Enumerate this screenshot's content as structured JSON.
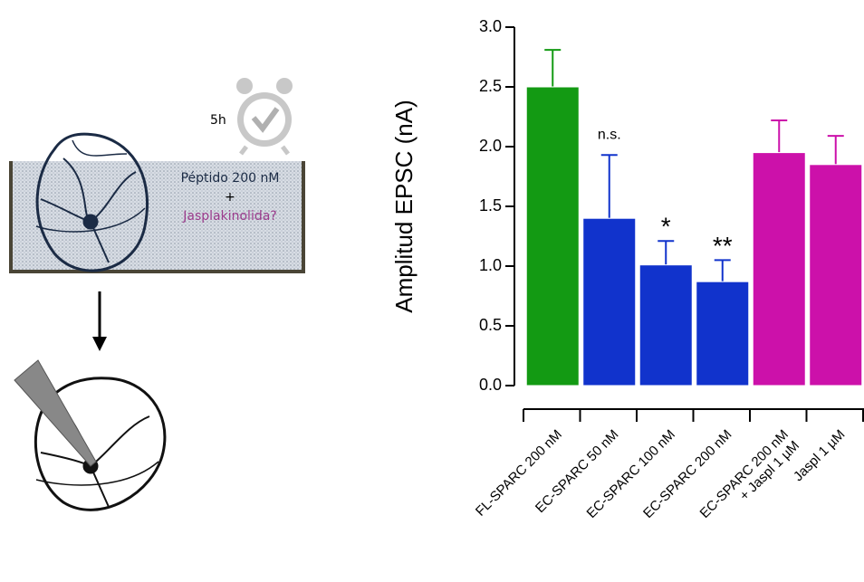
{
  "illustration": {
    "duration": "5h",
    "treatment": "Péptido 200 nM",
    "plus": "+",
    "question": "Jasplakinolida?"
  },
  "chart_data": {
    "type": "bar",
    "y_label": "Amplitud EPSC (nA)",
    "categories": [
      "FL-SPARC 200 nM",
      "EC-SPARC 50 nM",
      "EC-SPARC 100 nM",
      "EC-SPARC 200 nM",
      "EC-SPARC 200 nM + Jaspl 1 µM",
      "Jaspl 1 µM"
    ],
    "values": [
      2.5,
      1.4,
      1.01,
      0.87,
      1.95,
      1.85
    ],
    "errors": [
      0.31,
      0.53,
      0.2,
      0.18,
      0.27,
      0.24
    ],
    "colors": [
      "#139a13",
      "#1133cc",
      "#1133cc",
      "#1133cc",
      "#cc11aa",
      "#cc11aa"
    ],
    "annotations": [
      {
        "category": "EC-SPARC 50 nM",
        "text": "n.s."
      },
      {
        "category": "EC-SPARC 100 nM",
        "text": "*"
      },
      {
        "category": "EC-SPARC 200 nM",
        "text": "**"
      }
    ],
    "ylim": [
      0,
      3
    ],
    "yticks": [
      {
        "value": 0,
        "label": "0.0"
      },
      {
        "value": 0.5,
        "label": "0.5"
      },
      {
        "value": 1,
        "label": "1.0"
      },
      {
        "value": 1.5,
        "label": "1.5"
      },
      {
        "value": 2,
        "label": "2.0"
      },
      {
        "value": 2.5,
        "label": "2.5"
      },
      {
        "value": 3,
        "label": "3.0"
      }
    ]
  }
}
